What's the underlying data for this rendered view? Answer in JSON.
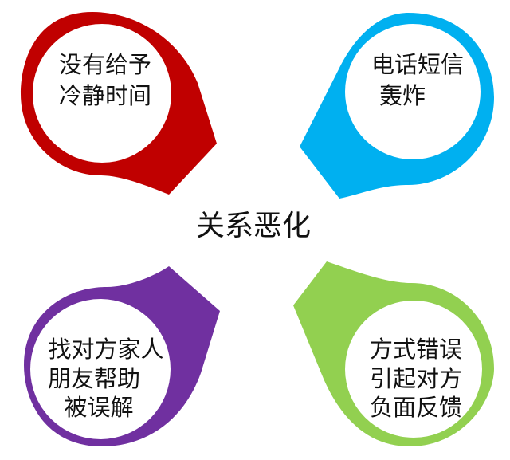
{
  "center": {
    "title": "关系恶化"
  },
  "petals": [
    {
      "id": "top-left",
      "color": "#c00000",
      "lines": [
        "没有给予",
        "冷静时间"
      ]
    },
    {
      "id": "top-right",
      "color": "#00b0f0",
      "lines": [
        "电话短信",
        "轰炸"
      ]
    },
    {
      "id": "bottom-left",
      "color": "#7030a0",
      "lines": [
        "找对方家人",
        "朋友帮助",
        "被误解"
      ]
    },
    {
      "id": "bottom-right",
      "color": "#92d050",
      "lines": [
        "方式错误",
        "引起对方",
        "负面反馈"
      ]
    }
  ]
}
